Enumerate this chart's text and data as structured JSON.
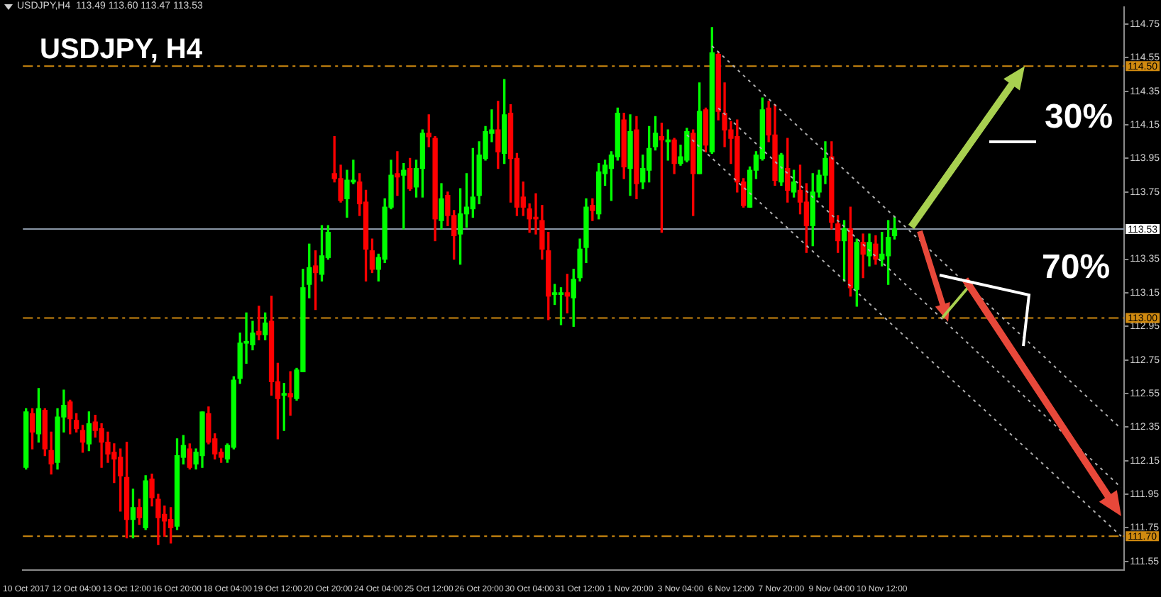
{
  "chart_data": {
    "type": "candlestick",
    "title": "USDJPY, H4",
    "subtitle": "USDJPY,H4  113.49 113.60 113.47 113.53",
    "annotations": [
      {
        "text": "30%",
        "y": 114.5
      },
      "70%"
    ],
    "categories": [
      "10 Oct 2017",
      null,
      null,
      null,
      null,
      null,
      null,
      null,
      "12 Oct 04:00",
      null,
      null,
      null,
      null,
      null,
      null,
      null,
      "13 Oct 12:00",
      null,
      null,
      null,
      null,
      null,
      null,
      null,
      "16 Oct 20:00",
      null,
      null,
      null,
      null,
      null,
      null,
      null,
      "18 Oct 04:00",
      null,
      null,
      null,
      null,
      null,
      null,
      null,
      "19 Oct 12:00",
      null,
      null,
      null,
      null,
      null,
      null,
      null,
      "20 Oct 20:00",
      null,
      null,
      null,
      null,
      null,
      null,
      null,
      "24 Oct 04:00",
      null,
      null,
      null,
      null,
      null,
      null,
      null,
      "25 Oct 12:00",
      null,
      null,
      null,
      null,
      null,
      null,
      null,
      "26 Oct 20:00",
      null,
      null,
      null,
      null,
      null,
      null,
      null,
      "30 Oct 04:00",
      null,
      null,
      null,
      null,
      null,
      null,
      null,
      "31 Oct 12:00",
      null,
      null,
      null,
      null,
      null,
      null,
      null,
      "1 Nov 20:00",
      null,
      null,
      null,
      null,
      null,
      null,
      null,
      "3 Nov 04:00",
      null,
      null,
      null,
      null,
      null,
      null,
      null,
      "6 Nov 12:00",
      null,
      null,
      null,
      null,
      null,
      null,
      null,
      "7 Nov 20:00",
      null,
      null,
      null,
      null,
      null,
      null,
      null,
      "9 Nov 04:00",
      null,
      null,
      null,
      null,
      null,
      null,
      null,
      "10 Nov 12:00",
      null,
      null,
      null,
      null,
      null,
      null,
      null,
      null,
      null,
      null,
      null,
      null,
      null,
      null,
      null,
      null,
      null,
      null,
      null,
      null,
      null,
      null,
      null,
      null,
      null,
      null,
      null,
      null,
      null,
      null,
      null,
      null,
      null,
      null,
      null,
      null,
      null,
      null
    ],
    "colors": [
      "#00ff00",
      "#ff0000",
      "#00ff00",
      "#ff0000",
      "#ff0000",
      "#00ff00",
      "#00ff00",
      "#ff0000",
      "#ff0000",
      "#ff0000",
      "#00ff00",
      "#ff0000",
      "#ff0000",
      "#ff0000",
      "#ff0000",
      "#ff0000",
      "#ff0000",
      "#00ff00",
      "#ff0000",
      "#00ff00",
      "#ff0000",
      "#ff0000",
      "#ff0000",
      "#ff0000",
      "#00ff00",
      "#00ff00",
      "#ff0000",
      "#00ff00",
      "#00ff00",
      "#ff0000",
      "#ff0000",
      "#ff0000",
      "#00ff00",
      "#00ff00",
      "#00ff00",
      "#00ff00",
      "#00ff00",
      "#ff0000",
      "#00ff00",
      "#ff0000",
      "#ff0000",
      "#00ff00",
      "#ff0000",
      "#00ff00",
      "#00ff00",
      "#00ff00",
      "#ff0000",
      "#00ff00",
      "#00ff00",
      "#ff0000",
      "#ff0000",
      "#00ff00",
      "#00ff00",
      "#ff0000",
      "#ff0000",
      "#ff0000",
      "#00ff00",
      "#00ff00",
      "#00ff00",
      "#ff0000",
      "#00ff00",
      "#ff0000",
      "#00ff00",
      "#00ff00",
      "#ff0000",
      "#ff0000",
      "#00ff00",
      "#ff0000",
      "#ff0000",
      "#00ff00",
      "#00ff00",
      "#00ff00",
      "#00ff00",
      "#00ff00",
      "#00ff00",
      "#ff0000",
      "#00ff00",
      "#ff0000",
      "#ff0000",
      "#ff0000",
      "#ff0000",
      "#ff0000",
      "#ff0000",
      "#ff0000",
      "#00ff00",
      "#00ff00",
      "#ff0000",
      "#00ff00",
      "#00ff00",
      "#00ff00",
      "#ff0000",
      "#00ff00",
      "#00ff00",
      "#00ff00",
      "#00ff00",
      "#ff0000",
      "#00ff00",
      "#ff0000",
      "#00ff00",
      "#00ff00",
      "#00ff00",
      "#ff0000",
      "#00ff00",
      "#ff0000",
      "#00ff00",
      "#00ff00",
      "#ff0000",
      "#00ff00",
      "#ff0000",
      "#00ff00",
      "#ff0000",
      "#ff0000",
      "#ff0000",
      "#ff0000",
      "#ff0000",
      "#00ff00",
      "#00ff00",
      "#00ff00",
      "#ff0000",
      "#ff0000",
      "#00ff00",
      "#ff0000",
      "#00ff00",
      "#ff0000",
      "#ff0000",
      "#00ff00",
      "#00ff00",
      "#00ff00",
      "#ff0000",
      "#ff0000",
      "#00ff00",
      "#ff0000",
      "#00ff00",
      "#ff0000",
      "#00ff00",
      "#ff0000",
      "#00ff00",
      "#00ff00",
      "#00ff00",
      null,
      null,
      null,
      null,
      null,
      null,
      null,
      null,
      null,
      null,
      null,
      null,
      null,
      null,
      null,
      null,
      null,
      null,
      null,
      null,
      null,
      null,
      null,
      null,
      null,
      null,
      null,
      null,
      null,
      null,
      null,
      null,
      null,
      null,
      null,
      null
    ],
    "ohlc": [
      [
        112.11,
        112.46,
        112.1,
        112.44
      ],
      [
        112.43,
        112.46,
        112.22,
        112.32
      ],
      [
        112.31,
        112.58,
        112.26,
        112.46
      ],
      [
        112.45,
        112.46,
        112.18,
        112.22
      ],
      [
        112.21,
        112.32,
        112.07,
        112.13
      ],
      [
        112.14,
        112.46,
        112.1,
        112.41
      ],
      [
        112.41,
        112.57,
        112.32,
        112.48
      ],
      [
        112.5,
        112.51,
        112.31,
        112.4
      ],
      [
        112.39,
        112.43,
        112.32,
        112.34
      ],
      [
        112.33,
        112.36,
        112.2,
        112.26
      ],
      [
        112.25,
        112.44,
        112.21,
        112.37
      ],
      [
        112.38,
        112.42,
        112.29,
        112.33
      ],
      [
        112.34,
        112.37,
        112.11,
        112.26
      ],
      [
        112.26,
        112.32,
        112.14,
        112.19
      ],
      [
        112.2,
        112.25,
        112.02,
        112.16
      ],
      [
        112.17,
        112.22,
        111.85,
        112.06
      ],
      [
        112.05,
        112.26,
        111.69,
        111.8
      ],
      [
        111.8,
        111.98,
        111.69,
        111.87
      ],
      [
        111.87,
        111.92,
        111.77,
        111.81
      ],
      [
        111.75,
        112.06,
        111.74,
        112.03
      ],
      [
        112.04,
        112.07,
        111.88,
        111.93
      ],
      [
        111.92,
        111.95,
        111.65,
        111.81
      ],
      [
        111.83,
        111.88,
        111.7,
        111.79
      ],
      [
        111.8,
        111.87,
        111.66,
        111.75
      ],
      [
        111.76,
        112.28,
        111.74,
        112.18
      ],
      [
        112.17,
        112.3,
        112.13,
        112.24
      ],
      [
        112.22,
        112.25,
        112.1,
        112.11
      ],
      [
        112.13,
        112.22,
        112.1,
        112.2
      ],
      [
        112.18,
        112.44,
        112.11,
        112.44
      ],
      [
        112.43,
        112.47,
        112.25,
        112.26
      ],
      [
        112.28,
        112.31,
        112.16,
        112.19
      ],
      [
        112.2,
        112.22,
        112.14,
        112.17
      ],
      [
        112.16,
        112.25,
        112.14,
        112.24
      ],
      [
        112.23,
        112.65,
        112.22,
        112.63
      ],
      [
        112.64,
        112.91,
        112.61,
        112.85
      ],
      [
        112.85,
        113.03,
        112.73,
        112.86
      ],
      [
        112.84,
        112.98,
        112.81,
        112.91
      ],
      [
        112.92,
        113.07,
        112.87,
        112.9
      ],
      [
        112.9,
        113.03,
        112.87,
        112.97
      ],
      [
        112.98,
        113.13,
        112.54,
        112.62
      ],
      [
        112.62,
        112.73,
        112.28,
        112.52
      ],
      [
        112.54,
        112.61,
        112.33,
        112.55
      ],
      [
        112.55,
        112.68,
        112.42,
        112.53
      ],
      [
        112.52,
        112.7,
        112.51,
        112.69
      ],
      [
        112.68,
        113.29,
        112.68,
        113.18
      ],
      [
        113.2,
        113.44,
        113.12,
        113.3
      ],
      [
        113.31,
        113.4,
        113.05,
        113.27
      ],
      [
        113.26,
        113.55,
        113.22,
        113.37
      ],
      [
        113.36,
        113.55,
        113.35,
        113.51
      ],
      [
        113.86,
        114.08,
        113.81,
        113.83
      ],
      [
        113.83,
        113.91,
        113.69,
        113.7
      ],
      [
        113.71,
        113.88,
        113.6,
        113.82
      ],
      [
        113.81,
        113.94,
        113.8,
        113.82
      ],
      [
        113.81,
        113.86,
        113.61,
        113.68
      ],
      [
        113.69,
        113.76,
        113.22,
        113.41
      ],
      [
        113.4,
        113.47,
        113.27,
        113.29
      ],
      [
        113.29,
        113.38,
        113.22,
        113.36
      ],
      [
        113.35,
        113.71,
        113.33,
        113.66
      ],
      [
        113.66,
        113.94,
        113.65,
        113.85
      ],
      [
        113.86,
        113.99,
        113.73,
        113.84
      ],
      [
        113.85,
        113.92,
        113.53,
        113.88
      ],
      [
        113.89,
        113.95,
        113.76,
        113.77
      ],
      [
        113.78,
        113.94,
        113.72,
        113.89
      ],
      [
        113.89,
        114.12,
        113.72,
        114.1
      ],
      [
        114.1,
        114.21,
        114.02,
        114.08
      ],
      [
        114.07,
        114.08,
        113.46,
        113.59
      ],
      [
        113.58,
        113.8,
        113.53,
        113.71
      ],
      [
        113.73,
        113.75,
        113.55,
        113.61
      ],
      [
        113.61,
        113.64,
        113.35,
        113.49
      ],
      [
        113.5,
        113.77,
        113.32,
        113.62
      ],
      [
        113.62,
        113.86,
        113.54,
        113.66
      ],
      [
        113.65,
        114.01,
        113.6,
        113.72
      ],
      [
        113.73,
        114.05,
        113.68,
        113.97
      ],
      [
        113.95,
        114.14,
        113.94,
        114.11
      ],
      [
        114.1,
        114.24,
        114.05,
        114.12
      ],
      [
        114.12,
        114.29,
        113.89,
        113.99
      ],
      [
        113.98,
        114.42,
        113.92,
        114.21
      ],
      [
        114.22,
        114.27,
        113.69,
        113.95
      ],
      [
        113.95,
        113.98,
        113.61,
        113.66
      ],
      [
        113.72,
        113.81,
        113.61,
        113.66
      ],
      [
        113.65,
        113.68,
        113.51,
        113.59
      ],
      [
        113.6,
        113.74,
        113.5,
        113.59
      ],
      [
        113.58,
        113.67,
        113.35,
        113.41
      ],
      [
        113.4,
        113.51,
        112.99,
        113.13
      ],
      [
        113.14,
        113.2,
        113.08,
        113.15
      ],
      [
        113.14,
        113.18,
        112.96,
        113.15
      ],
      [
        113.15,
        113.26,
        113.03,
        113.13
      ],
      [
        113.12,
        113.29,
        112.95,
        113.23
      ],
      [
        113.24,
        113.47,
        113.22,
        113.41
      ],
      [
        113.42,
        113.71,
        113.33,
        113.66
      ],
      [
        113.67,
        113.71,
        113.58,
        113.64
      ],
      [
        113.62,
        113.92,
        113.59,
        113.87
      ],
      [
        113.86,
        113.94,
        113.79,
        113.91
      ],
      [
        113.89,
        113.99,
        113.7,
        113.97
      ],
      [
        113.96,
        114.25,
        113.94,
        114.22
      ],
      [
        114.18,
        114.22,
        113.83,
        113.9
      ],
      [
        113.89,
        114.21,
        113.73,
        114.11
      ],
      [
        114.12,
        114.2,
        113.71,
        113.8
      ],
      [
        113.81,
        113.97,
        113.77,
        113.89
      ],
      [
        113.88,
        114.14,
        113.81,
        114.01
      ],
      [
        114.02,
        114.2,
        114.0,
        114.1
      ],
      [
        114.08,
        114.16,
        113.51,
        114.06
      ],
      [
        114.05,
        114.12,
        113.94,
        114.06
      ],
      [
        114.06,
        114.07,
        113.86,
        113.92
      ],
      [
        113.92,
        114.03,
        113.91,
        113.96
      ],
      [
        113.94,
        114.13,
        113.93,
        114.11
      ],
      [
        114.1,
        114.12,
        113.61,
        113.86
      ],
      [
        113.86,
        114.4,
        113.86,
        114.23
      ],
      [
        114.24,
        114.25,
        113.99,
        114.03
      ],
      [
        113.99,
        114.73,
        113.98,
        114.58
      ],
      [
        114.57,
        114.58,
        114.18,
        114.23
      ],
      [
        114.22,
        114.4,
        114.02,
        114.12
      ],
      [
        114.12,
        114.17,
        113.92,
        114.07
      ],
      [
        114.08,
        114.18,
        113.75,
        113.81
      ],
      [
        113.81,
        113.83,
        113.66,
        113.67
      ],
      [
        113.66,
        113.9,
        113.66,
        113.88
      ],
      [
        113.88,
        113.99,
        113.83,
        113.97
      ],
      [
        113.95,
        114.31,
        113.94,
        114.24
      ],
      [
        114.25,
        114.29,
        114.05,
        114.09
      ],
      [
        114.09,
        114.27,
        113.79,
        113.82
      ],
      [
        113.81,
        113.98,
        113.79,
        113.97
      ],
      [
        113.89,
        114.07,
        113.69,
        113.76
      ],
      [
        113.75,
        113.88,
        113.72,
        113.81
      ],
      [
        113.76,
        113.91,
        113.62,
        113.69
      ],
      [
        113.69,
        113.8,
        113.39,
        113.55
      ],
      [
        113.55,
        113.86,
        113.43,
        113.75
      ],
      [
        113.75,
        113.88,
        113.72,
        113.85
      ],
      [
        113.85,
        114.05,
        113.8,
        113.95
      ],
      [
        113.96,
        114.05,
        113.53,
        113.57
      ],
      [
        113.56,
        113.61,
        113.39,
        113.46
      ],
      [
        113.46,
        113.58,
        113.22,
        113.53
      ],
      [
        113.53,
        113.66,
        113.13,
        113.18
      ],
      [
        113.17,
        113.47,
        113.07,
        113.45
      ],
      [
        113.45,
        113.5,
        113.24,
        113.38
      ],
      [
        113.37,
        113.5,
        113.31,
        113.45
      ],
      [
        113.44,
        113.49,
        113.32,
        113.35
      ],
      [
        113.35,
        113.51,
        113.31,
        113.38
      ],
      [
        113.37,
        113.58,
        113.2,
        113.48
      ],
      [
        113.49,
        113.6,
        113.47,
        113.53
      ],
      null,
      null,
      null,
      null,
      null,
      null,
      null,
      null,
      null,
      null,
      null,
      null,
      null,
      null,
      null,
      null,
      null,
      null,
      null,
      null,
      null,
      null,
      null,
      null,
      null,
      null,
      null,
      null,
      null,
      null,
      null,
      null,
      null,
      null,
      null,
      null
    ],
    "series": [
      {
        "type": "line",
        "color": "#b0b0b0",
        "line_style": "dotted",
        "values": [
          null,
          null,
          null,
          null,
          null,
          null,
          null,
          null,
          null,
          null,
          null,
          null,
          null,
          null,
          null,
          null,
          null,
          null,
          null,
          null,
          null,
          null,
          null,
          null,
          null,
          null,
          null,
          null,
          null,
          null,
          null,
          null,
          null,
          null,
          null,
          null,
          null,
          null,
          null,
          null,
          null,
          null,
          null,
          null,
          null,
          null,
          null,
          null,
          null,
          null,
          null,
          null,
          null,
          null,
          null,
          null,
          null,
          null,
          null,
          null,
          null,
          null,
          null,
          null,
          null,
          null,
          null,
          null,
          null,
          null,
          null,
          null,
          null,
          null,
          null,
          null,
          null,
          null,
          null,
          null,
          null,
          null,
          null,
          null,
          null,
          null,
          null,
          null,
          null,
          null,
          null,
          null,
          null,
          null,
          null,
          null,
          null,
          null,
          null,
          null,
          null,
          null,
          null,
          null,
          null,
          null,
          null,
          null,
          null,
          114.62,
          null,
          null,
          null,
          null,
          null,
          null,
          null,
          null,
          null,
          null,
          null,
          null,
          null,
          null,
          null,
          null,
          null,
          null,
          null,
          null,
          null,
          null,
          null,
          null,
          null,
          null,
          null,
          null,
          null,
          null,
          null,
          null,
          null,
          null,
          null,
          null,
          null,
          null,
          null,
          null,
          null,
          null,
          null,
          null,
          null,
          null,
          null,
          null,
          null,
          null,
          null,
          null,
          null,
          null,
          null,
          null,
          null,
          null,
          null,
          null,
          null,
          null,
          null,
          null,
          112.34
        ]
      },
      {
        "type": "line",
        "color": "#b0b0b0",
        "line_style": "dotted",
        "values": [
          null,
          null,
          null,
          null,
          null,
          null,
          null,
          null,
          null,
          null,
          null,
          null,
          null,
          null,
          null,
          null,
          null,
          null,
          null,
          null,
          null,
          null,
          null,
          null,
          null,
          null,
          null,
          null,
          null,
          null,
          null,
          null,
          null,
          null,
          null,
          null,
          null,
          null,
          null,
          null,
          null,
          null,
          null,
          null,
          null,
          null,
          null,
          null,
          null,
          null,
          null,
          null,
          null,
          null,
          null,
          null,
          null,
          null,
          null,
          null,
          null,
          null,
          null,
          null,
          null,
          null,
          null,
          null,
          null,
          null,
          null,
          null,
          null,
          null,
          null,
          null,
          null,
          null,
          null,
          null,
          null,
          null,
          null,
          null,
          null,
          null,
          null,
          null,
          null,
          null,
          null,
          null,
          null,
          null,
          null,
          null,
          null,
          null,
          null,
          null,
          null,
          null,
          null,
          null,
          null,
          null,
          null,
          null,
          null,
          null,
          114.25,
          null,
          null,
          null,
          null,
          null,
          null,
          null,
          null,
          null,
          null,
          null,
          null,
          null,
          null,
          null,
          null,
          null,
          null,
          null,
          null,
          null,
          null,
          null,
          null,
          null,
          null,
          null,
          null,
          null,
          null,
          null,
          null,
          null,
          null,
          null,
          null,
          null,
          null,
          null,
          null,
          null,
          null,
          null,
          null,
          null,
          null,
          null,
          null,
          null,
          null,
          null,
          null,
          null,
          null,
          null,
          null,
          null,
          null,
          null,
          null,
          null,
          null,
          null,
          111.99
        ]
      },
      {
        "type": "line",
        "color": "#b0b0b0",
        "line_style": "dotted",
        "values": [
          null,
          null,
          null,
          null,
          null,
          null,
          null,
          null,
          null,
          null,
          null,
          null,
          null,
          null,
          null,
          null,
          null,
          null,
          null,
          null,
          null,
          null,
          null,
          null,
          null,
          null,
          null,
          null,
          null,
          null,
          null,
          null,
          null,
          null,
          null,
          null,
          null,
          null,
          null,
          null,
          null,
          null,
          null,
          null,
          null,
          null,
          null,
          null,
          null,
          null,
          null,
          null,
          null,
          null,
          null,
          null,
          null,
          null,
          null,
          null,
          null,
          null,
          null,
          null,
          null,
          null,
          null,
          null,
          null,
          null,
          null,
          null,
          null,
          null,
          null,
          null,
          null,
          null,
          null,
          null,
          null,
          null,
          null,
          null,
          null,
          null,
          null,
          null,
          null,
          null,
          null,
          null,
          null,
          null,
          null,
          null,
          null,
          null,
          null,
          null,
          null,
          null,
          null,
          null,
          null,
          114.09,
          null,
          null,
          null,
          null,
          null,
          null,
          null,
          null,
          null,
          null,
          null,
          null,
          null,
          null,
          null,
          null,
          null,
          null,
          null,
          null,
          null,
          null,
          null,
          null,
          null,
          null,
          null,
          null,
          null,
          null,
          null,
          null,
          null,
          null,
          null,
          null,
          null,
          null,
          null,
          null,
          null,
          null,
          null,
          null,
          null,
          null,
          null,
          null,
          null,
          null,
          null,
          null,
          null,
          null,
          null,
          null,
          null,
          null,
          null,
          null,
          null,
          null,
          null,
          null,
          null,
          null,
          null,
          null,
          111.7
        ]
      }
    ],
    "ref_lines": [
      {
        "axis": "y",
        "value": 114.5,
        "label": "114.50",
        "color": "#d08a10",
        "line_style": "dashed"
      },
      {
        "axis": "y",
        "value": 113.0,
        "label": "113.00",
        "color": "#d08a10",
        "line_style": "dashed"
      },
      {
        "axis": "y",
        "value": 111.7,
        "label": "111.70",
        "color": "#d08a10",
        "line_style": "dashed"
      },
      {
        "axis": "y",
        "value": 113.53,
        "label": "113.53",
        "color": "#8a96a6",
        "line_style": "solid"
      }
    ],
    "ylim": [
      111.5,
      114.85
    ],
    "yticks": [
      114.75,
      114.55,
      114.35,
      114.15,
      113.95,
      113.75,
      113.35,
      113.15,
      112.95,
      112.75,
      112.55,
      112.35,
      112.15,
      111.95,
      111.75,
      111.55
    ],
    "grid": false,
    "legend": false
  }
}
